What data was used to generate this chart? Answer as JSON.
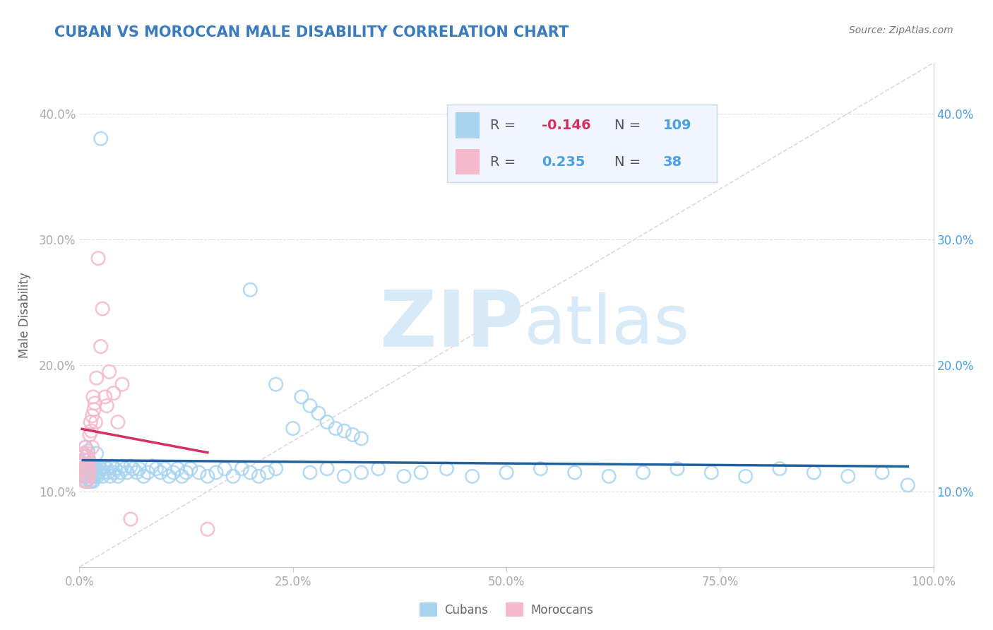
{
  "title": "CUBAN VS MOROCCAN MALE DISABILITY CORRELATION CHART",
  "source": "Source: ZipAtlas.com",
  "ylabel": "Male Disability",
  "xlim": [
    0.0,
    1.0
  ],
  "ylim": [
    0.04,
    0.44
  ],
  "yticks": [
    0.1,
    0.2,
    0.3,
    0.4
  ],
  "ytick_labels": [
    "10.0%",
    "20.0%",
    "30.0%",
    "40.0%"
  ],
  "xticks": [
    0.0,
    0.25,
    0.5,
    0.75,
    1.0
  ],
  "xtick_labels": [
    "0.0%",
    "25.0%",
    "50.0%",
    "75.0%",
    "100.0%"
  ],
  "cuban_color": "#a8d4f0",
  "moroccan_color": "#f5b8cc",
  "cuban_line_color": "#2060a0",
  "moroccan_line_color": "#d43060",
  "R_cuban": -0.146,
  "N_cuban": 109,
  "R_moroccan": 0.235,
  "N_moroccan": 38,
  "watermark_color": "#d8eaf8",
  "title_color": "#3a7abf",
  "source_color": "#777777",
  "ylabel_color": "#666666",
  "tick_color": "#aaaaaa",
  "grid_color": "#dddddd",
  "right_tick_color": "#4da0e0",
  "cuban_x": [
    0.004,
    0.005,
    0.006,
    0.007,
    0.007,
    0.008,
    0.008,
    0.009,
    0.009,
    0.01,
    0.01,
    0.01,
    0.011,
    0.011,
    0.012,
    0.012,
    0.012,
    0.013,
    0.013,
    0.014,
    0.014,
    0.015,
    0.015,
    0.016,
    0.016,
    0.017,
    0.018,
    0.018,
    0.019,
    0.02,
    0.02,
    0.021,
    0.022,
    0.023,
    0.025,
    0.025,
    0.027,
    0.028,
    0.03,
    0.032,
    0.034,
    0.036,
    0.038,
    0.04,
    0.042,
    0.045,
    0.048,
    0.05,
    0.053,
    0.056,
    0.06,
    0.063,
    0.067,
    0.07,
    0.075,
    0.08,
    0.085,
    0.09,
    0.095,
    0.1,
    0.105,
    0.11,
    0.115,
    0.12,
    0.125,
    0.13,
    0.14,
    0.15,
    0.16,
    0.17,
    0.18,
    0.19,
    0.2,
    0.21,
    0.22,
    0.23,
    0.25,
    0.27,
    0.29,
    0.31,
    0.33,
    0.35,
    0.38,
    0.4,
    0.43,
    0.46,
    0.5,
    0.54,
    0.58,
    0.62,
    0.66,
    0.7,
    0.74,
    0.78,
    0.82,
    0.86,
    0.9,
    0.94,
    0.97,
    0.2,
    0.23,
    0.26,
    0.27,
    0.28,
    0.29,
    0.3,
    0.31,
    0.32,
    0.33
  ],
  "cuban_y": [
    0.13,
    0.125,
    0.118,
    0.112,
    0.135,
    0.12,
    0.108,
    0.115,
    0.128,
    0.132,
    0.118,
    0.11,
    0.125,
    0.115,
    0.12,
    0.108,
    0.118,
    0.115,
    0.112,
    0.12,
    0.108,
    0.118,
    0.112,
    0.115,
    0.108,
    0.12,
    0.118,
    0.112,
    0.115,
    0.13,
    0.118,
    0.112,
    0.12,
    0.115,
    0.118,
    0.38,
    0.112,
    0.115,
    0.12,
    0.118,
    0.115,
    0.112,
    0.12,
    0.115,
    0.118,
    0.112,
    0.115,
    0.12,
    0.118,
    0.115,
    0.12,
    0.118,
    0.115,
    0.118,
    0.112,
    0.115,
    0.12,
    0.118,
    0.115,
    0.118,
    0.112,
    0.115,
    0.118,
    0.112,
    0.115,
    0.118,
    0.115,
    0.112,
    0.115,
    0.118,
    0.112,
    0.118,
    0.115,
    0.112,
    0.115,
    0.118,
    0.15,
    0.115,
    0.118,
    0.112,
    0.115,
    0.118,
    0.112,
    0.115,
    0.118,
    0.112,
    0.115,
    0.118,
    0.115,
    0.112,
    0.115,
    0.118,
    0.115,
    0.112,
    0.118,
    0.115,
    0.112,
    0.115,
    0.105,
    0.26,
    0.185,
    0.175,
    0.168,
    0.162,
    0.155,
    0.15,
    0.148,
    0.145,
    0.142
  ],
  "moroccan_x": [
    0.003,
    0.004,
    0.005,
    0.005,
    0.006,
    0.006,
    0.007,
    0.007,
    0.008,
    0.008,
    0.009,
    0.009,
    0.01,
    0.01,
    0.011,
    0.011,
    0.012,
    0.012,
    0.013,
    0.014,
    0.015,
    0.015,
    0.016,
    0.017,
    0.018,
    0.019,
    0.02,
    0.022,
    0.025,
    0.027,
    0.03,
    0.032,
    0.035,
    0.04,
    0.045,
    0.05,
    0.06,
    0.15
  ],
  "moroccan_y": [
    0.128,
    0.118,
    0.13,
    0.112,
    0.125,
    0.108,
    0.135,
    0.115,
    0.128,
    0.118,
    0.122,
    0.108,
    0.13,
    0.115,
    0.125,
    0.112,
    0.145,
    0.118,
    0.155,
    0.148,
    0.16,
    0.135,
    0.175,
    0.165,
    0.17,
    0.155,
    0.19,
    0.285,
    0.215,
    0.245,
    0.175,
    0.168,
    0.195,
    0.178,
    0.155,
    0.185,
    0.078,
    0.07
  ]
}
